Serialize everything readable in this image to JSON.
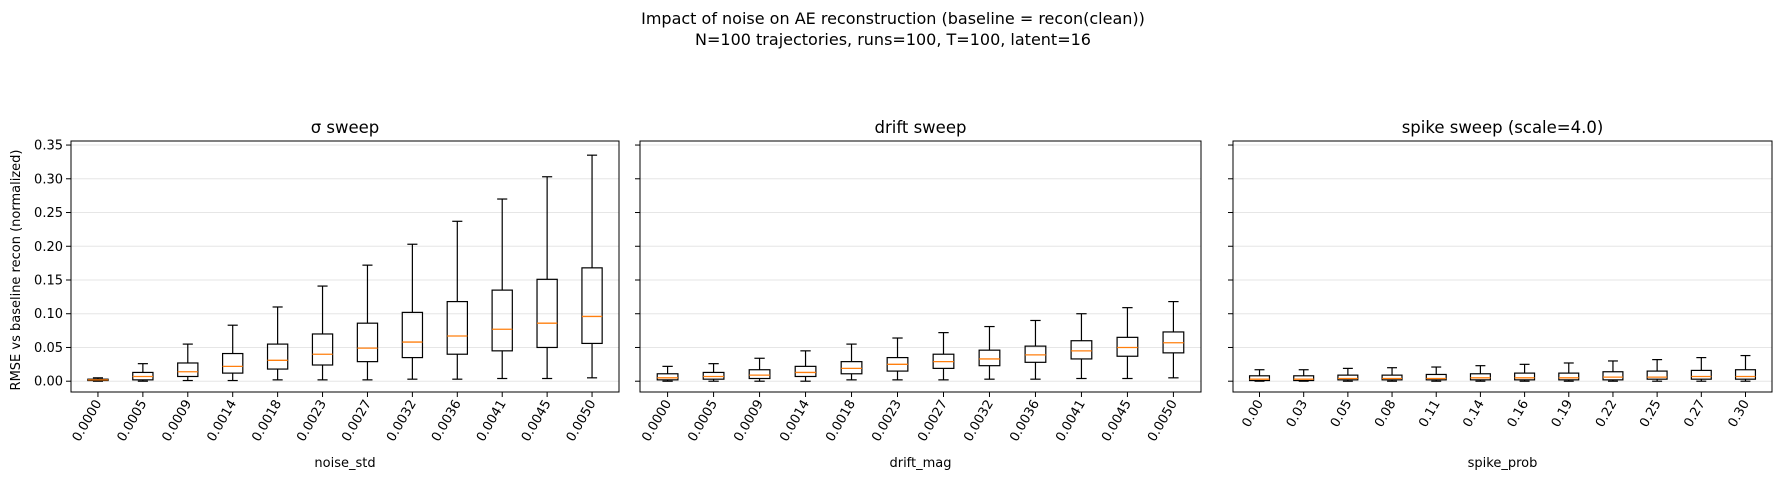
{
  "figure": {
    "title_line1": "Impact of noise on AE reconstruction (baseline = recon(clean))",
    "title_line2": "N=100 trajectories, runs=100, T=100, latent=16",
    "shared_ylabel": "RMSE vs baseline recon (normalized)"
  },
  "style": {
    "box_edge": "#000000",
    "median": "#ff7f0e",
    "grid": "#e6e6e6"
  },
  "chart_data": [
    {
      "type": "box",
      "title": "σ sweep",
      "xlabel": "noise_std",
      "ylabel": "RMSE vs baseline recon (normalized)",
      "ylim": [
        -0.016,
        0.356
      ],
      "yticks": [
        "0.00",
        "0.05",
        "0.10",
        "0.15",
        "0.20",
        "0.25",
        "0.30",
        "0.35"
      ],
      "grid": "y",
      "categories": [
        "0.0000",
        "0.0005",
        "0.0009",
        "0.0014",
        "0.0018",
        "0.0023",
        "0.0027",
        "0.0032",
        "0.0036",
        "0.0041",
        "0.0045",
        "0.0050"
      ],
      "boxes": [
        {
          "whislo": 0.0,
          "q1": 0.001,
          "med": 0.002,
          "q3": 0.003,
          "whishi": 0.005
        },
        {
          "whislo": 0.0,
          "q1": 0.002,
          "med": 0.007,
          "q3": 0.013,
          "whishi": 0.026
        },
        {
          "whislo": 0.001,
          "q1": 0.007,
          "med": 0.014,
          "q3": 0.027,
          "whishi": 0.055
        },
        {
          "whislo": 0.001,
          "q1": 0.012,
          "med": 0.022,
          "q3": 0.041,
          "whishi": 0.083
        },
        {
          "whislo": 0.002,
          "q1": 0.018,
          "med": 0.031,
          "q3": 0.055,
          "whishi": 0.11
        },
        {
          "whislo": 0.002,
          "q1": 0.024,
          "med": 0.04,
          "q3": 0.07,
          "whishi": 0.141
        },
        {
          "whislo": 0.002,
          "q1": 0.029,
          "med": 0.049,
          "q3": 0.086,
          "whishi": 0.172
        },
        {
          "whislo": 0.003,
          "q1": 0.035,
          "med": 0.058,
          "q3": 0.102,
          "whishi": 0.203
        },
        {
          "whislo": 0.003,
          "q1": 0.04,
          "med": 0.067,
          "q3": 0.118,
          "whishi": 0.237
        },
        {
          "whislo": 0.004,
          "q1": 0.045,
          "med": 0.077,
          "q3": 0.135,
          "whishi": 0.27
        },
        {
          "whislo": 0.004,
          "q1": 0.05,
          "med": 0.086,
          "q3": 0.151,
          "whishi": 0.303
        },
        {
          "whislo": 0.005,
          "q1": 0.056,
          "med": 0.096,
          "q3": 0.168,
          "whishi": 0.335
        }
      ]
    },
    {
      "type": "box",
      "title": "drift sweep",
      "xlabel": "drift_mag",
      "ylim": [
        -0.016,
        0.356
      ],
      "grid": "y",
      "categories": [
        "0.0000",
        "0.0005",
        "0.0009",
        "0.0014",
        "0.0018",
        "0.0023",
        "0.0027",
        "0.0032",
        "0.0036",
        "0.0041",
        "0.0045",
        "0.0050"
      ],
      "boxes": [
        {
          "whislo": 0.0,
          "q1": 0.002,
          "med": 0.005,
          "q3": 0.011,
          "whishi": 0.022
        },
        {
          "whislo": 0.0,
          "q1": 0.003,
          "med": 0.007,
          "q3": 0.013,
          "whishi": 0.026
        },
        {
          "whislo": 0.0,
          "q1": 0.004,
          "med": 0.009,
          "q3": 0.017,
          "whishi": 0.034
        },
        {
          "whislo": 0.0,
          "q1": 0.007,
          "med": 0.013,
          "q3": 0.022,
          "whishi": 0.045
        },
        {
          "whislo": 0.002,
          "q1": 0.011,
          "med": 0.019,
          "q3": 0.029,
          "whishi": 0.055
        },
        {
          "whislo": 0.002,
          "q1": 0.015,
          "med": 0.025,
          "q3": 0.035,
          "whishi": 0.064
        },
        {
          "whislo": 0.002,
          "q1": 0.019,
          "med": 0.029,
          "q3": 0.04,
          "whishi": 0.072
        },
        {
          "whislo": 0.003,
          "q1": 0.023,
          "med": 0.033,
          "q3": 0.046,
          "whishi": 0.081
        },
        {
          "whislo": 0.003,
          "q1": 0.028,
          "med": 0.039,
          "q3": 0.052,
          "whishi": 0.09
        },
        {
          "whislo": 0.004,
          "q1": 0.033,
          "med": 0.045,
          "q3": 0.06,
          "whishi": 0.1
        },
        {
          "whislo": 0.004,
          "q1": 0.037,
          "med": 0.05,
          "q3": 0.065,
          "whishi": 0.109
        },
        {
          "whislo": 0.005,
          "q1": 0.042,
          "med": 0.057,
          "q3": 0.073,
          "whishi": 0.118
        }
      ]
    },
    {
      "type": "box",
      "title": "spike sweep (scale=4.0)",
      "xlabel": "spike_prob",
      "ylim": [
        -0.016,
        0.356
      ],
      "grid": "y",
      "categories": [
        "0.00",
        "0.03",
        "0.05",
        "0.08",
        "0.11",
        "0.14",
        "0.16",
        "0.19",
        "0.22",
        "0.25",
        "0.27",
        "0.30"
      ],
      "boxes": [
        {
          "whislo": 0.0,
          "q1": 0.001,
          "med": 0.003,
          "q3": 0.008,
          "whishi": 0.017
        },
        {
          "whislo": 0.0,
          "q1": 0.001,
          "med": 0.003,
          "q3": 0.008,
          "whishi": 0.017
        },
        {
          "whislo": 0.0,
          "q1": 0.002,
          "med": 0.004,
          "q3": 0.009,
          "whishi": 0.019
        },
        {
          "whislo": 0.0,
          "q1": 0.002,
          "med": 0.004,
          "q3": 0.009,
          "whishi": 0.02
        },
        {
          "whislo": 0.0,
          "q1": 0.002,
          "med": 0.004,
          "q3": 0.01,
          "whishi": 0.021
        },
        {
          "whislo": 0.0,
          "q1": 0.002,
          "med": 0.005,
          "q3": 0.011,
          "whishi": 0.023
        },
        {
          "whislo": 0.0,
          "q1": 0.002,
          "med": 0.005,
          "q3": 0.012,
          "whishi": 0.025
        },
        {
          "whislo": 0.0,
          "q1": 0.002,
          "med": 0.005,
          "q3": 0.012,
          "whishi": 0.027
        },
        {
          "whislo": 0.0,
          "q1": 0.002,
          "med": 0.006,
          "q3": 0.014,
          "whishi": 0.03
        },
        {
          "whislo": 0.0,
          "q1": 0.003,
          "med": 0.006,
          "q3": 0.015,
          "whishi": 0.032
        },
        {
          "whislo": 0.0,
          "q1": 0.003,
          "med": 0.007,
          "q3": 0.016,
          "whishi": 0.035
        },
        {
          "whislo": 0.0,
          "q1": 0.003,
          "med": 0.007,
          "q3": 0.017,
          "whishi": 0.038
        }
      ]
    }
  ]
}
